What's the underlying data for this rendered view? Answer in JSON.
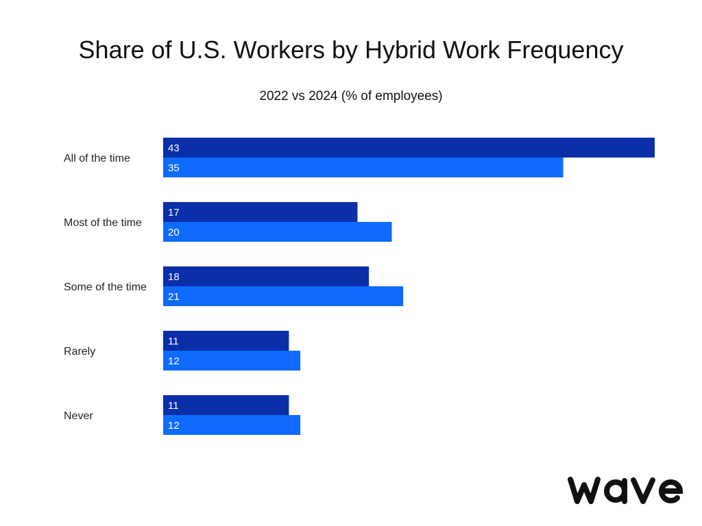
{
  "chart_data": {
    "type": "bar",
    "orientation": "horizontal",
    "title": "Share of U.S. Workers by Hybrid Work Frequency",
    "subtitle": "2022 vs 2024 (% of employees)",
    "xlim": [
      0,
      43
    ],
    "grid": false,
    "legend": "none",
    "categories": [
      "All of the time",
      "Most of the time",
      "Some of the time",
      "Rarely",
      "Never"
    ],
    "series": [
      {
        "values": [
          43,
          17,
          18,
          11,
          11
        ],
        "color": "#0a2fa8"
      },
      {
        "values": [
          35,
          20,
          21,
          12,
          12
        ],
        "color": "#0f6bff"
      }
    ]
  },
  "brand": {
    "logo_text": "wave",
    "color": "#111111"
  }
}
